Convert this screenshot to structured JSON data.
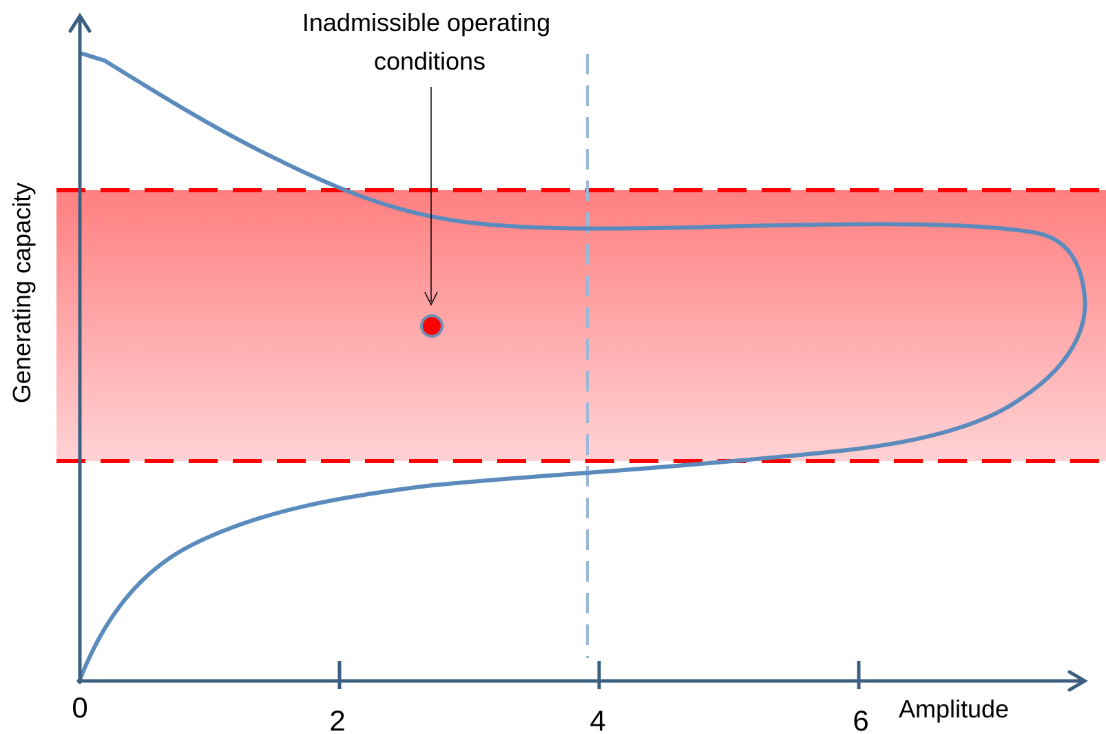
{
  "diagram": {
    "y_axis_title": "Generating capacity",
    "x_axis_title": "Amplitude",
    "annotation": {
      "line1": "Inadmissible operating",
      "line2": "conditions"
    }
  },
  "chart_data": {
    "type": "line",
    "xlabel": "Amplitude",
    "ylabel": "Generating capacity",
    "x_tick_labels": [
      "0",
      "2",
      "4",
      "6"
    ],
    "colors": {
      "curve": "#5b8bbd",
      "band_top": "#ff7f7f",
      "band_bottom": "#ffd2d5",
      "band_boundary": "#ff0000",
      "axes": "#3c5f80",
      "reference_line": "#9ab8d6",
      "marker_fill": "#ff0000",
      "marker_stroke": "#6d8fb3"
    },
    "reference_line_x": 4,
    "marker": {
      "x": 2.7
    }
  }
}
